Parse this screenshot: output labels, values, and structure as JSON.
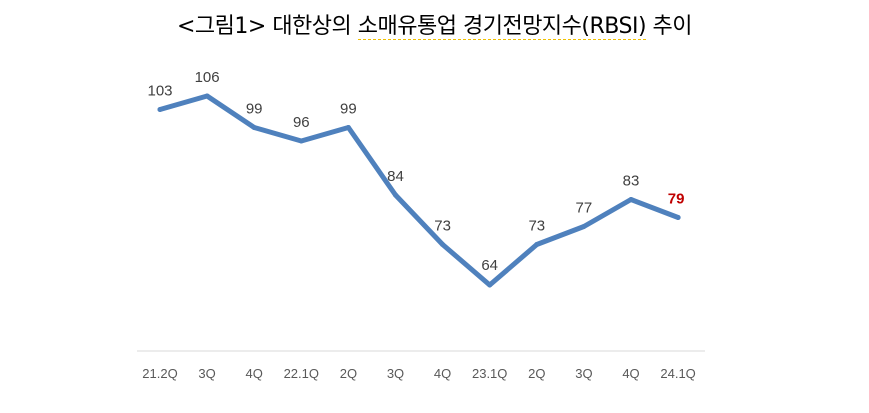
{
  "title": {
    "prefix": "<그림1> 대한상의 ",
    "underlined": "소매유통업 경기전망지수(RBSI)",
    "suffix": " 추이"
  },
  "chart_data": {
    "type": "line",
    "categories": [
      "21.2Q",
      "3Q",
      "4Q",
      "22.1Q",
      "2Q",
      "3Q",
      "4Q",
      "23.1Q",
      "2Q",
      "3Q",
      "4Q",
      "24.1Q"
    ],
    "series": [
      {
        "values": [
          103,
          106,
          99,
          96,
          99,
          84,
          73,
          64,
          73,
          77,
          83,
          79
        ]
      }
    ],
    "data_labels": [
      "103",
      "106",
      "99",
      "96",
      "99",
      "84",
      "73",
      "64",
      "73",
      "77",
      "83",
      "79"
    ],
    "highlight_last": true,
    "grid": false,
    "legend": "none",
    "line_color": "#4f81bd",
    "highlight_color": "#c00000"
  }
}
